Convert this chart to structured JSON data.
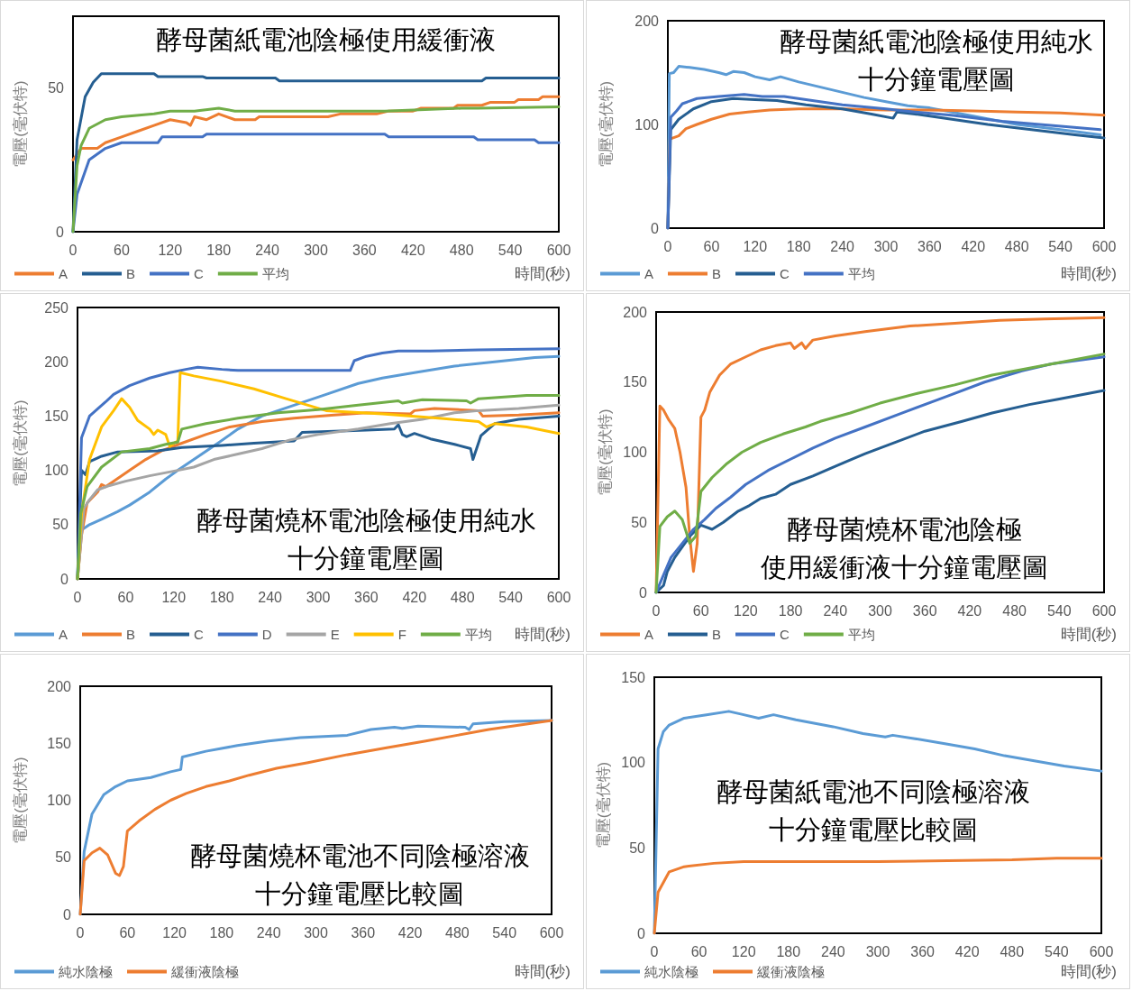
{
  "chart_data": [
    {
      "type": "line",
      "title": "酵母菌紙電池陰極使用緩衝液",
      "xlabel": "時間(秒)",
      "ylabel": "電壓(毫伏特)",
      "xlim": [
        0,
        600
      ],
      "xticks": [
        0,
        60,
        120,
        180,
        240,
        300,
        360,
        420,
        480,
        540,
        600
      ],
      "ylim": [
        0,
        75
      ],
      "yticks": [
        0,
        50
      ],
      "grid": false,
      "legend": "bottom left",
      "marker": "none",
      "line_style": "solid",
      "series": [
        {
          "name": "A",
          "color": "#ed7d31",
          "x": [
            0,
            10,
            30,
            40,
            60,
            80,
            100,
            120,
            140,
            145,
            150,
            165,
            180,
            200,
            225,
            230,
            315,
            330,
            375,
            390,
            420,
            430,
            470,
            475,
            505,
            515,
            545,
            550,
            575,
            580,
            600
          ],
          "values": [
            25,
            29,
            29,
            31,
            33,
            35,
            37,
            39,
            38,
            37,
            40,
            39,
            41,
            39,
            39,
            40,
            40,
            41,
            41,
            42,
            42,
            43,
            43,
            44,
            44,
            45,
            45,
            46,
            46,
            47,
            47
          ]
        },
        {
          "name": "B",
          "color": "#255e91",
          "x": [
            0,
            5,
            15,
            25,
            35,
            100,
            105,
            160,
            165,
            250,
            255,
            505,
            510,
            600
          ],
          "values": [
            0,
            32,
            47,
            52,
            55,
            55,
            54,
            54,
            53.5,
            53.5,
            52.5,
            52.5,
            53.5,
            53.5
          ]
        },
        {
          "name": "C",
          "color": "#4472c4",
          "x": [
            0,
            5,
            20,
            40,
            60,
            105,
            110,
            160,
            165,
            385,
            390,
            495,
            500,
            570,
            575,
            600
          ],
          "values": [
            0,
            13,
            25,
            29,
            31,
            31,
            33,
            33,
            34,
            34,
            33,
            33,
            32,
            32,
            31,
            31
          ]
        },
        {
          "name": "平均",
          "color": "#70ad47",
          "x": [
            0,
            5,
            10,
            20,
            40,
            60,
            100,
            120,
            150,
            180,
            200,
            385,
            480,
            500,
            600
          ],
          "values": [
            0,
            23,
            30,
            36,
            39,
            40,
            41,
            42,
            42,
            43,
            42,
            42,
            43,
            43,
            43.5
          ]
        }
      ]
    },
    {
      "type": "line",
      "title": "酵母菌紙電池陰極使用純水十分鐘電壓圖",
      "xlabel": "時間(秒)",
      "ylabel": "電壓(毫伏特)",
      "xlim": [
        0,
        600
      ],
      "xticks": [
        0,
        60,
        120,
        180,
        240,
        300,
        360,
        420,
        480,
        540,
        600
      ],
      "ylim": [
        0,
        200
      ],
      "yticks": [
        0,
        100,
        200
      ],
      "grid": false,
      "legend": "bottom left",
      "marker": "none",
      "line_style": "solid",
      "series": [
        {
          "name": "A",
          "color": "#5b9bd5",
          "x": [
            0,
            2,
            8,
            15,
            30,
            50,
            70,
            80,
            90,
            105,
            120,
            140,
            155,
            180,
            210,
            240,
            270,
            300,
            330,
            360,
            420,
            480,
            540,
            595
          ],
          "values": [
            0,
            149,
            150,
            156,
            155,
            153,
            150,
            148,
            151,
            150,
            146,
            143,
            146,
            141,
            136,
            131,
            126,
            122,
            118,
            116,
            108,
            100,
            95,
            90
          ]
        },
        {
          "name": "B",
          "color": "#ed7d31",
          "x": [
            0,
            3,
            15,
            25,
            40,
            60,
            85,
            110,
            140,
            180,
            240,
            300,
            360,
            420,
            480,
            540,
            600
          ],
          "values": [
            0,
            86,
            89,
            96,
            100,
            105,
            110,
            112,
            114,
            115,
            115,
            114,
            114,
            113,
            112,
            111,
            109
          ]
        },
        {
          "name": "C",
          "color": "#255e91",
          "x": [
            0,
            4,
            15,
            35,
            60,
            90,
            120,
            150,
            190,
            240,
            280,
            310,
            315,
            340,
            380,
            440,
            500,
            560,
            600
          ],
          "values": [
            0,
            95,
            105,
            115,
            122,
            125,
            124,
            123,
            119,
            115,
            110,
            106,
            112,
            110,
            106,
            100,
            95,
            90,
            87
          ]
        },
        {
          "name": "平均",
          "color": "#4472c4",
          "x": [
            0,
            4,
            12,
            20,
            40,
            70,
            105,
            130,
            160,
            190,
            240,
            300,
            340,
            390,
            460,
            530,
            595
          ],
          "values": [
            0,
            107,
            113,
            120,
            125,
            127,
            129,
            127,
            127,
            124,
            119,
            115,
            112,
            109,
            103,
            99,
            95
          ]
        }
      ]
    },
    {
      "type": "line",
      "title": "酵母菌燒杯電池陰極使用純水十分鐘電壓圖",
      "xlabel": "時間(秒)",
      "ylabel": "電壓(毫伏特)",
      "xlim": [
        0,
        600
      ],
      "xticks": [
        0,
        60,
        120,
        180,
        240,
        300,
        360,
        420,
        480,
        540,
        600
      ],
      "ylim": [
        0,
        250
      ],
      "yticks": [
        0,
        50,
        100,
        150,
        200,
        250
      ],
      "grid": false,
      "legend": "bottom left",
      "marker": "none",
      "line_style": "solid",
      "series": [
        {
          "name": "A",
          "color": "#5b9bd5",
          "x": [
            0,
            5,
            15,
            30,
            50,
            65,
            90,
            110,
            125,
            145,
            175,
            200,
            230,
            270,
            310,
            350,
            380,
            420,
            470,
            520,
            570,
            600
          ],
          "values": [
            0,
            45,
            50,
            55,
            62,
            68,
            80,
            92,
            100,
            110,
            125,
            138,
            150,
            160,
            170,
            180,
            185,
            190,
            196,
            200,
            204,
            205
          ]
        },
        {
          "name": "B",
          "color": "#ed7d31",
          "x": [
            0,
            5,
            12,
            25,
            30,
            35,
            45,
            65,
            85,
            105,
            130,
            160,
            190,
            230,
            270,
            320,
            360,
            415,
            420,
            445,
            500,
            505,
            550,
            600
          ],
          "values": [
            0,
            40,
            70,
            80,
            87,
            85,
            90,
            100,
            110,
            118,
            125,
            133,
            140,
            145,
            148,
            151,
            153,
            152,
            155,
            157,
            155,
            150,
            151,
            153
          ]
        },
        {
          "name": "C",
          "color": "#255e91",
          "x": [
            0,
            5,
            10,
            15,
            30,
            50,
            100,
            130,
            180,
            220,
            270,
            280,
            320,
            360,
            395,
            400,
            405,
            410,
            420,
            440,
            470,
            490,
            493,
            503,
            520,
            550,
            600
          ],
          "values": [
            0,
            100,
            96,
            108,
            113,
            117,
            118,
            121,
            123,
            125,
            127,
            135,
            136,
            137,
            138,
            142,
            133,
            131,
            134,
            129,
            124,
            120,
            110,
            132,
            143,
            147,
            150
          ]
        },
        {
          "name": "D",
          "color": "#4472c4",
          "x": [
            0,
            5,
            15,
            35,
            45,
            65,
            90,
            115,
            135,
            150,
            180,
            200,
            340,
            345,
            360,
            380,
            400,
            440,
            500,
            600
          ],
          "values": [
            0,
            130,
            150,
            163,
            170,
            178,
            185,
            190,
            193,
            195,
            193,
            192,
            192,
            201,
            205,
            208,
            210,
            210,
            211,
            212
          ]
        },
        {
          "name": "E",
          "color": "#a5a5a5",
          "x": [
            0,
            8,
            15,
            25,
            40,
            60,
            90,
            125,
            145,
            170,
            200,
            230,
            265,
            300,
            350,
            390,
            430,
            470,
            500,
            550,
            600
          ],
          "values": [
            0,
            65,
            73,
            82,
            86,
            90,
            95,
            100,
            103,
            110,
            115,
            120,
            128,
            133,
            138,
            143,
            147,
            153,
            155,
            157,
            160
          ]
        },
        {
          "name": "F",
          "color": "#ffc000",
          "x": [
            0,
            5,
            15,
            30,
            45,
            55,
            65,
            75,
            90,
            95,
            100,
            110,
            115,
            120,
            125,
            128,
            145,
            180,
            220,
            260,
            310,
            380,
            450,
            500,
            510,
            520,
            560,
            600
          ],
          "values": [
            0,
            60,
            110,
            140,
            155,
            166,
            158,
            146,
            138,
            133,
            137,
            133,
            122,
            125,
            127,
            190,
            187,
            182,
            175,
            166,
            155,
            152,
            148,
            145,
            140,
            143,
            140,
            134
          ]
        },
        {
          "name": "平均",
          "color": "#70ad47",
          "x": [
            0,
            4,
            12,
            30,
            55,
            90,
            110,
            125,
            130,
            160,
            200,
            250,
            300,
            350,
            400,
            405,
            430,
            485,
            490,
            500,
            560,
            600
          ],
          "values": [
            0,
            60,
            85,
            103,
            117,
            120,
            124,
            126,
            138,
            143,
            148,
            153,
            156,
            160,
            164,
            162,
            165,
            164,
            162,
            166,
            169,
            169
          ]
        }
      ]
    },
    {
      "type": "line",
      "title": "酵母菌燒杯電池陰極使用緩衝液十分鐘電壓圖",
      "xlabel": "時間(秒)",
      "ylabel": "電壓(毫伏特)",
      "xlim": [
        0,
        600
      ],
      "xticks": [
        0,
        60,
        120,
        180,
        240,
        300,
        360,
        420,
        480,
        540,
        600
      ],
      "ylim": [
        0,
        200
      ],
      "yticks": [
        0,
        50,
        100,
        150,
        200
      ],
      "grid": false,
      "legend": "bottom left",
      "marker": "none",
      "line_style": "solid",
      "series": [
        {
          "name": "A",
          "color": "#ed7d31",
          "x": [
            0,
            5,
            10,
            17,
            25,
            32,
            40,
            45,
            50,
            55,
            60,
            65,
            72,
            85,
            100,
            120,
            140,
            160,
            180,
            185,
            195,
            200,
            210,
            240,
            280,
            340,
            400,
            460,
            520,
            600
          ],
          "values": [
            0,
            133,
            130,
            123,
            117,
            100,
            75,
            40,
            15,
            35,
            125,
            130,
            143,
            155,
            163,
            168,
            173,
            176,
            178,
            174,
            178,
            174,
            180,
            183,
            186,
            190,
            192,
            194,
            195,
            196
          ]
        },
        {
          "name": "B",
          "color": "#255e91",
          "x": [
            0,
            10,
            15,
            25,
            45,
            60,
            75,
            90,
            110,
            125,
            140,
            160,
            180,
            210,
            240,
            280,
            320,
            360,
            410,
            450,
            500,
            540,
            600
          ],
          "values": [
            0,
            5,
            15,
            25,
            40,
            48,
            45,
            50,
            58,
            62,
            67,
            70,
            77,
            83,
            90,
            99,
            107,
            115,
            122,
            128,
            134,
            138,
            144
          ]
        },
        {
          "name": "C",
          "color": "#4472c4",
          "x": [
            0,
            8,
            20,
            35,
            50,
            65,
            80,
            100,
            120,
            150,
            180,
            210,
            240,
            280,
            330,
            390,
            440,
            490,
            530,
            600
          ],
          "values": [
            0,
            10,
            25,
            35,
            45,
            52,
            60,
            68,
            77,
            87,
            95,
            103,
            110,
            118,
            128,
            140,
            150,
            158,
            163,
            168
          ]
        },
        {
          "name": "平均",
          "color": "#70ad47",
          "x": [
            0,
            5,
            15,
            25,
            35,
            45,
            53,
            60,
            75,
            95,
            115,
            140,
            170,
            200,
            220,
            260,
            300,
            350,
            400,
            450,
            500,
            550,
            600
          ],
          "values": [
            0,
            47,
            54,
            58,
            52,
            35,
            40,
            72,
            82,
            92,
            100,
            107,
            113,
            118,
            122,
            128,
            135,
            142,
            148,
            155,
            160,
            165,
            170
          ]
        }
      ]
    },
    {
      "type": "line",
      "title": "酵母菌燒杯電池不同陰極溶液十分鐘電壓比較圖",
      "xlabel": "時間(秒)",
      "ylabel": "電壓(毫伏特)",
      "xlim": [
        0,
        600
      ],
      "xticks": [
        0,
        60,
        120,
        180,
        240,
        300,
        360,
        420,
        480,
        540,
        600
      ],
      "ylim": [
        0,
        200
      ],
      "yticks": [
        0,
        50,
        100,
        150,
        200
      ],
      "grid": false,
      "legend": "bottom left",
      "marker": "none",
      "line_style": "solid",
      "series": [
        {
          "name": "純水陰極",
          "color": "#5b9bd5",
          "x": [
            0,
            5,
            15,
            30,
            45,
            60,
            90,
            115,
            128,
            130,
            160,
            200,
            240,
            280,
            340,
            370,
            400,
            410,
            430,
            490,
            495,
            500,
            540,
            600
          ],
          "values": [
            0,
            55,
            88,
            105,
            112,
            117,
            120,
            125,
            127,
            138,
            143,
            148,
            152,
            155,
            157,
            162,
            164,
            163,
            165,
            164,
            162,
            167,
            169,
            170
          ]
        },
        {
          "name": "緩衝液陰極",
          "color": "#ed7d31",
          "x": [
            0,
            5,
            15,
            25,
            35,
            45,
            50,
            55,
            60,
            75,
            95,
            115,
            135,
            160,
            190,
            215,
            250,
            290,
            340,
            390,
            440,
            480,
            520,
            560,
            600
          ],
          "values": [
            0,
            47,
            54,
            58,
            52,
            36,
            34,
            42,
            73,
            82,
            92,
            100,
            106,
            112,
            117,
            122,
            128,
            133,
            140,
            146,
            152,
            157,
            162,
            166,
            170
          ]
        }
      ]
    },
    {
      "type": "line",
      "title": "酵母菌紙電池不同陰極溶液十分鐘電壓比較圖",
      "xlabel": "時間(秒)",
      "ylabel": "電壓(毫伏特)",
      "xlim": [
        0,
        600
      ],
      "xticks": [
        0,
        60,
        120,
        180,
        240,
        300,
        360,
        420,
        480,
        540,
        600
      ],
      "ylim": [
        0,
        150
      ],
      "yticks": [
        0,
        50,
        100,
        150
      ],
      "grid": false,
      "legend": "bottom left",
      "marker": "none",
      "line_style": "solid",
      "series": [
        {
          "name": "純水陰極",
          "color": "#5b9bd5",
          "x": [
            0,
            5,
            12,
            20,
            40,
            70,
            100,
            120,
            140,
            160,
            190,
            240,
            280,
            310,
            320,
            350,
            390,
            430,
            470,
            510,
            550,
            600
          ],
          "values": [
            0,
            108,
            118,
            122,
            126,
            128,
            130,
            128,
            126,
            128,
            125,
            121,
            117,
            115,
            116,
            114,
            111,
            108,
            104,
            101,
            98,
            95
          ]
        },
        {
          "name": "緩衝液陰極",
          "color": "#ed7d31",
          "x": [
            0,
            5,
            20,
            40,
            80,
            120,
            200,
            300,
            480,
            540,
            600
          ],
          "values": [
            0,
            24,
            36,
            39,
            41,
            42,
            42,
            42,
            43,
            44,
            44
          ]
        }
      ]
    }
  ]
}
